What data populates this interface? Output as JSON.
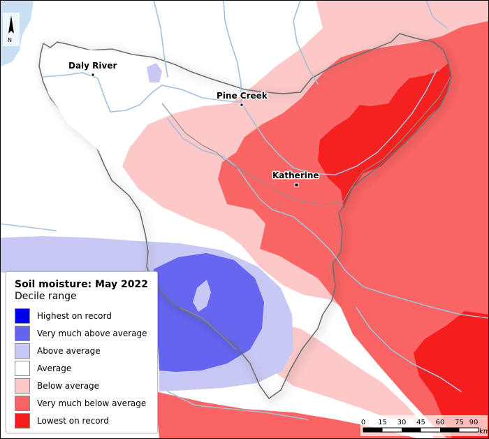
{
  "legend": {
    "title": "Soil moisture: May 2022",
    "subtitle": "Decile range",
    "items": [
      {
        "label": "Highest on record",
        "color": "#0000f0"
      },
      {
        "label": "Very much above average",
        "color": "#6464f0"
      },
      {
        "label": "Above average",
        "color": "#c8c8f5"
      },
      {
        "label": "Average",
        "color": "#ffffff"
      },
      {
        "label": "Below average",
        "color": "#fcc8c8"
      },
      {
        "label": "Very much below average",
        "color": "#fa6464"
      },
      {
        "label": "Lowest on record",
        "color": "#f51e1e"
      }
    ]
  },
  "towns": {
    "daly_river": "Daly River",
    "pine_creek": "Pine Creek",
    "katherine": "Katherine"
  },
  "north_arrow": {
    "letter": "N"
  },
  "scale_bar": {
    "ticks": [
      "0",
      "15",
      "30",
      "45",
      "60",
      "75",
      "90"
    ],
    "unit": "km"
  }
}
